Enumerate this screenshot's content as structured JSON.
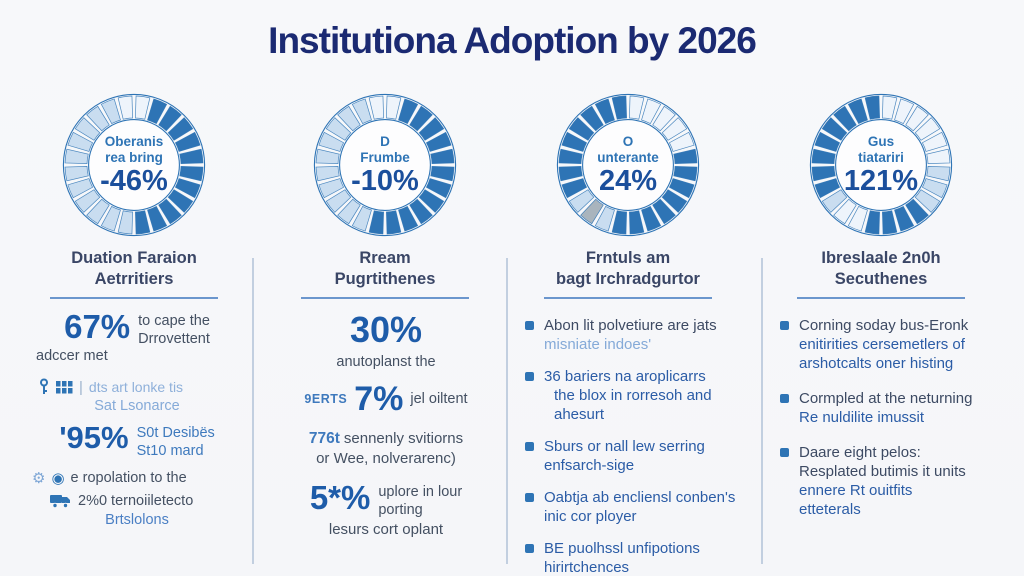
{
  "title": "Institutiona Adoption by 2026",
  "colors": {
    "title_navy": "#1b2a72",
    "donut_blue": "#2e74b5",
    "donut_light": "#c9ddf0",
    "donut_pale": "#eef4fb",
    "donut_gray": "#a9b4bd",
    "stat_blue": "#1e5ca9",
    "body_dark": "#445062",
    "body_blue": "#2b5ca6",
    "body_light_blue": "#85aad8",
    "heading_underline": "#6b96cd",
    "divider": "#c2cfe0"
  },
  "donut_palette": {
    "dark": "#2e74b5",
    "light": "#c9ddf0",
    "pale": "#eef4fb",
    "gray": "#a9b4bd"
  },
  "icon_glyphs": {
    "gear": "⚙",
    "circle_badge": "◉",
    "pipe": "|"
  },
  "columns": [
    {
      "donut": {
        "label_lines": [
          "Oberanis",
          "rea bring"
        ],
        "percent": "-46%",
        "segments": [
          "pale",
          "dark",
          "dark",
          "dark",
          "dark",
          "dark",
          "dark",
          "dark",
          "dark",
          "dark",
          "dark",
          "dark",
          "light",
          "light",
          "light",
          "light",
          "light",
          "light",
          "light",
          "light",
          "light",
          "light",
          "light",
          "pale"
        ]
      },
      "heading": [
        "Duation Faraion",
        "Aetrritiers"
      ],
      "body": {
        "stat1_value": "67%",
        "stat1_side": [
          "to cape the",
          "Drrovettent"
        ],
        "stat1_below": "adccer met",
        "icon_line": "dts art lonke tis",
        "icon_line2": "Sat Lsonarce",
        "stat2_value": "'95%",
        "stat2_side": [
          "S0t Desibës",
          "St10 mard"
        ],
        "gear_line": "e ropolation to the",
        "truck_line": "2%0 ternoiiletecto",
        "truck_line2": "Brtslolons"
      }
    },
    {
      "donut": {
        "label_lines": [
          "D",
          "Frumbe"
        ],
        "percent": "-10%",
        "segments": [
          "pale",
          "dark",
          "dark",
          "dark",
          "dark",
          "dark",
          "dark",
          "dark",
          "dark",
          "dark",
          "dark",
          "dark",
          "dark",
          "light",
          "light",
          "light",
          "light",
          "light",
          "light",
          "light",
          "light",
          "light",
          "light",
          "pale"
        ]
      },
      "heading": [
        "Rream",
        "Pugrtithenes"
      ],
      "body": {
        "stat1_value": "30%",
        "stat1_sub": "anutoplanst the",
        "stat2_prefix": "9ERTS",
        "stat2_value": "7%",
        "stat2_suffix": "jel oiltent",
        "line3_prefix": "776t",
        "line3_text": "sennenly svitiorns",
        "line3_text2": "or Wee, nolverarenc)",
        "stat3_value": "5*%",
        "stat3_side": [
          "uplore in lour",
          "porting"
        ],
        "stat3_below": "lesurs cort oplant"
      }
    },
    {
      "donut": {
        "label_lines": [
          "O",
          "unterante"
        ],
        "percent": "24%",
        "segments": [
          "pale",
          "pale",
          "pale",
          "pale",
          "pale",
          "dark",
          "dark",
          "dark",
          "dark",
          "dark",
          "dark",
          "dark",
          "dark",
          "light",
          "gray",
          "light",
          "dark",
          "dark",
          "dark",
          "dark",
          "dark",
          "dark",
          "dark",
          "dark"
        ]
      },
      "heading": [
        "Frntuls am",
        "bagt Irchradgurtor"
      ],
      "bullets": [
        [
          "Abon lit polvetiure are jats",
          "misniate indoes'"
        ],
        [
          "36 bariers na aroplicarrs",
          "the blox in rorresoh and",
          "ahesurt"
        ],
        [
          "Sburs or nall lew serring",
          "enfsarch-sige"
        ],
        [
          "Oabtja ab encliensl conben's",
          "inic cor ployer"
        ],
        [
          "BE puolhssl unfipotions",
          "hirirtchences"
        ]
      ]
    },
    {
      "donut": {
        "label_lines": [
          "Gus",
          "tiatariri"
        ],
        "percent": "121%",
        "segments": [
          "pale",
          "pale",
          "pale",
          "pale",
          "pale",
          "pale",
          "light",
          "light",
          "light",
          "dark",
          "dark",
          "dark",
          "dark",
          "pale",
          "pale",
          "light",
          "dark",
          "dark",
          "dark",
          "dark",
          "dark",
          "dark",
          "dark",
          "dark"
        ]
      },
      "heading": [
        "Ibreslaale 2n0h",
        "Secuthenes"
      ],
      "bullets": [
        [
          "Corning soday bus-Eronk",
          "enitirities cersemetlers of",
          "arshotcalts oner histing"
        ],
        [
          "Cormpled at the neturning",
          "Re nuldilite imussit"
        ],
        [
          "Daare eight pelos:",
          "Resplated butimis it units",
          "ennere Rt ouitfits",
          "etteterals"
        ]
      ]
    }
  ],
  "chart_data": [
    {
      "type": "pie",
      "title": "Oberanis rea bring",
      "center_label": "-46%",
      "value": -46,
      "ring_segments": 24,
      "style": "segmented-donut"
    },
    {
      "type": "pie",
      "title": "D Frumbe",
      "center_label": "-10%",
      "value": -10,
      "ring_segments": 24,
      "style": "segmented-donut"
    },
    {
      "type": "pie",
      "title": "O unterante",
      "center_label": "24%",
      "value": 24,
      "ring_segments": 24,
      "style": "segmented-donut"
    },
    {
      "type": "pie",
      "title": "Gus tiatariri",
      "center_label": "121%",
      "value": 121,
      "ring_segments": 24,
      "style": "segmented-donut"
    }
  ]
}
